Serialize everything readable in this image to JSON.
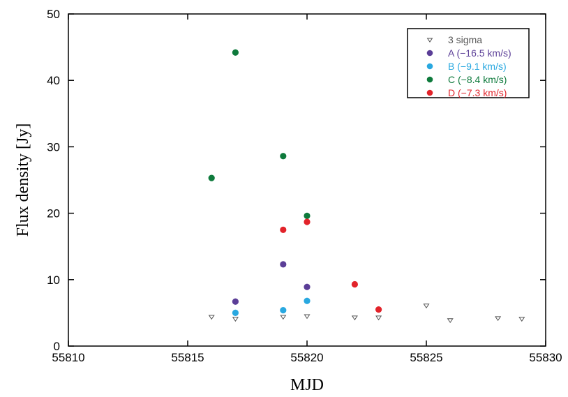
{
  "chart_data": {
    "type": "scatter",
    "title": "",
    "xlabel": "MJD",
    "ylabel": "Flux density [Jy]",
    "xlim": [
      55810,
      55830
    ],
    "ylim": [
      0,
      50
    ],
    "xticks": [
      55810,
      55815,
      55820,
      55825,
      55830
    ],
    "yticks": [
      0,
      10,
      20,
      30,
      40,
      50
    ],
    "grid": false,
    "legend_position": "top-right",
    "series": [
      {
        "name": "3 sigma",
        "marker": "triangle-down-open",
        "color": "#555555",
        "text_color": "#555555",
        "points": [
          {
            "x": 55816,
            "y": 4.4
          },
          {
            "x": 55817,
            "y": 4.1
          },
          {
            "x": 55819,
            "y": 4.4
          },
          {
            "x": 55820,
            "y": 4.5
          },
          {
            "x": 55822,
            "y": 4.3
          },
          {
            "x": 55823,
            "y": 4.3
          },
          {
            "x": 55825,
            "y": 6.1
          },
          {
            "x": 55826,
            "y": 3.9
          },
          {
            "x": 55828,
            "y": 4.2
          },
          {
            "x": 55829,
            "y": 4.1
          }
        ]
      },
      {
        "name": "A (−16.5 km/s)",
        "marker": "circle",
        "color": "#5b3e97",
        "text_color": "#5b3e97",
        "points": [
          {
            "x": 55817,
            "y": 6.7
          },
          {
            "x": 55819,
            "y": 12.3
          },
          {
            "x": 55820,
            "y": 8.9
          }
        ]
      },
      {
        "name": "B (−9.1 km/s)",
        "marker": "circle",
        "color": "#29a8e0",
        "text_color": "#29a8e0",
        "points": [
          {
            "x": 55817,
            "y": 5.0
          },
          {
            "x": 55819,
            "y": 5.4
          },
          {
            "x": 55820,
            "y": 6.8
          }
        ]
      },
      {
        "name": "C (−8.4 km/s)",
        "marker": "circle",
        "color": "#0e7a3c",
        "text_color": "#0e7a3c",
        "points": [
          {
            "x": 55816,
            "y": 25.3
          },
          {
            "x": 55817,
            "y": 44.2
          },
          {
            "x": 55819,
            "y": 28.6
          },
          {
            "x": 55820,
            "y": 19.6
          }
        ]
      },
      {
        "name": "D (−7.3 km/s)",
        "marker": "circle",
        "color": "#e2232a",
        "text_color": "#e2232a",
        "points": [
          {
            "x": 55819,
            "y": 17.5
          },
          {
            "x": 55820,
            "y": 18.7
          },
          {
            "x": 55822,
            "y": 9.3
          },
          {
            "x": 55823,
            "y": 5.5
          }
        ]
      }
    ]
  }
}
